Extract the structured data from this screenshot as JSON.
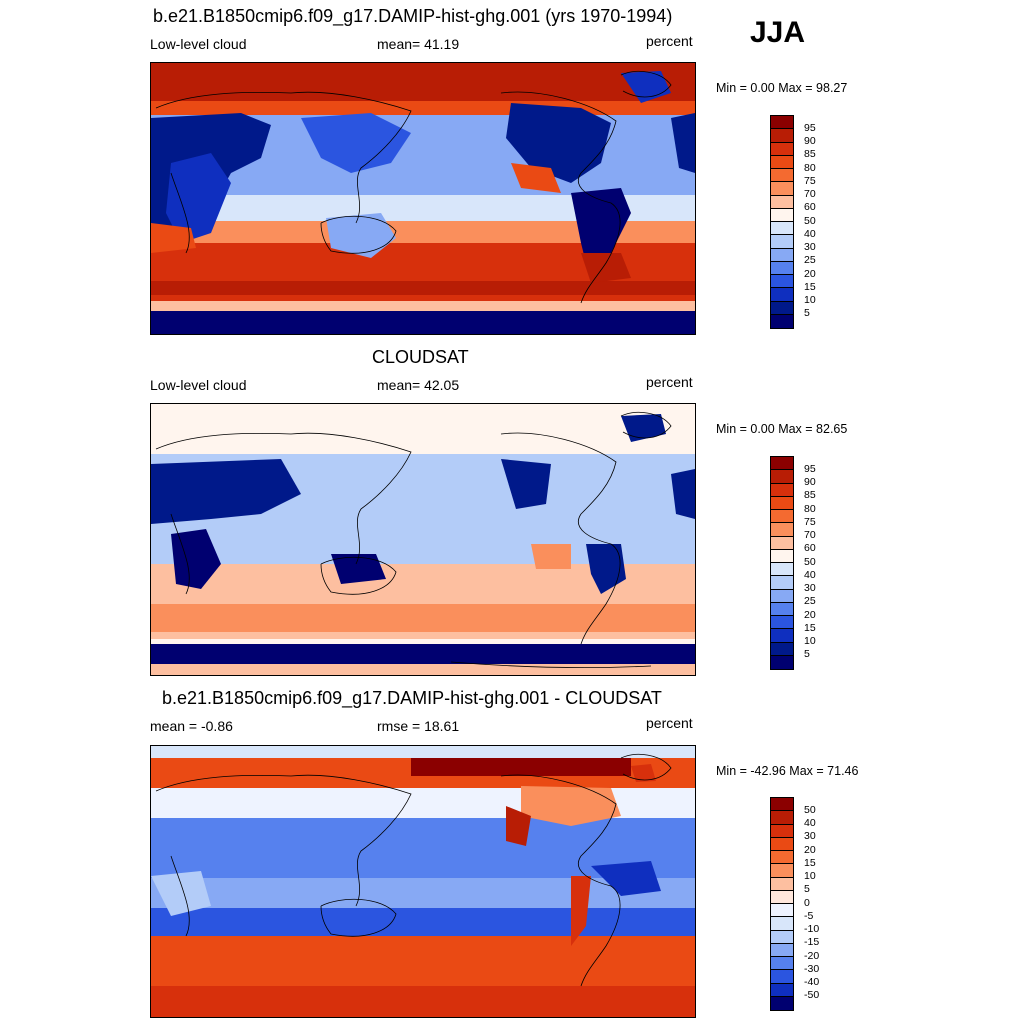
{
  "season": "JJA",
  "panels": [
    {
      "title": "b.e21.B1850cmip6.f09_g17.DAMIP-hist-ghg.001 (yrs 1970-1994)",
      "left": "Low-level cloud",
      "center": "mean=  41.19",
      "right": "percent",
      "minmax": "Min =   0.00 Max =  98.27",
      "scale": "abs",
      "labels": [
        "95",
        "90",
        "85",
        "80",
        "75",
        "70",
        "60",
        "50",
        "40",
        "30",
        "25",
        "20",
        "15",
        "10",
        "5"
      ]
    },
    {
      "title": "CLOUDSAT",
      "left": "Low-level cloud",
      "center": "mean=  42.05",
      "right": "percent",
      "minmax": "Min =   0.00 Max =  82.65",
      "scale": "abs",
      "labels": [
        "95",
        "90",
        "85",
        "80",
        "75",
        "70",
        "60",
        "50",
        "40",
        "30",
        "25",
        "20",
        "15",
        "10",
        "5"
      ]
    },
    {
      "title": "b.e21.B1850cmip6.f09_g17.DAMIP-hist-ghg.001 - CLOUDSAT",
      "left": "mean =  -0.86",
      "center": "rmse =  18.61",
      "right": "percent",
      "minmax": "Min = -42.96 Max =  71.46",
      "scale": "diff",
      "labels": [
        "50",
        "40",
        "30",
        "20",
        "15",
        "10",
        "5",
        "0",
        "-5",
        "-10",
        "-15",
        "-20",
        "-30",
        "-40",
        "-50"
      ]
    }
  ],
  "colors": {
    "abs": [
      "#8b0000",
      "#b81d05",
      "#d7300c",
      "#ea4a14",
      "#f46a30",
      "#fa8f5c",
      "#fdbfa0",
      "#fff5ee",
      "#d8e6fa",
      "#b3ccf8",
      "#87a9f4",
      "#5681ee",
      "#2b55e0",
      "#0f2fbf",
      "#00198a",
      "#000070"
    ],
    "diff": [
      "#8b0000",
      "#b81d05",
      "#d7300c",
      "#ea4a14",
      "#f46a30",
      "#fa8f5c",
      "#fdbfa0",
      "#ffe7dc",
      "#eef3ff",
      "#d8e6fa",
      "#b3ccf8",
      "#87a9f4",
      "#5681ee",
      "#2b55e0",
      "#0f2fbf",
      "#000070"
    ]
  }
}
